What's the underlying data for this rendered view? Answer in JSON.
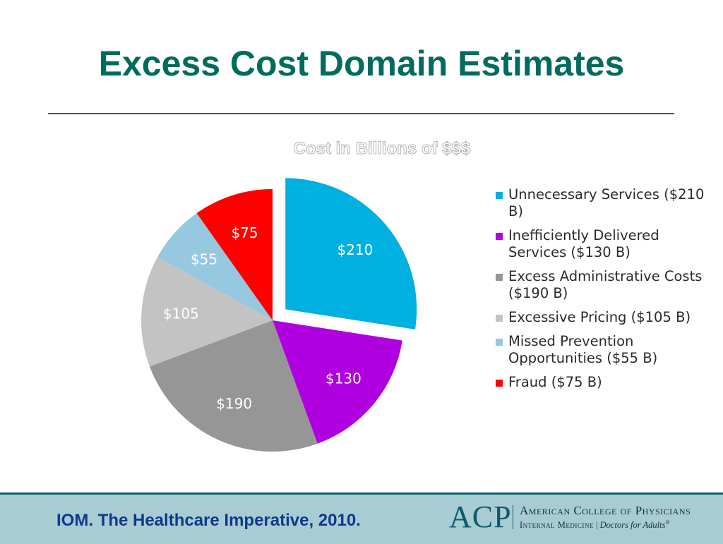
{
  "slide": {
    "title": "Excess Cost Domain Estimates"
  },
  "chart_data": {
    "type": "pie",
    "title": "Cost in Billions of $$$",
    "categories": [
      "Unnecessary Services ($210 B)",
      "Inefficiently Delivered Services ($130 B)",
      "Excess Administrative Costs ($190 B)",
      "Excessive Pricing ($105 B)",
      "Missed Prevention Opportunities ($55 B)",
      "Fraud ($75 B)"
    ],
    "values": [
      210,
      130,
      190,
      105,
      55,
      75
    ],
    "data_labels": [
      "$210",
      "$130",
      "$190",
      "$105",
      "$55",
      "$75"
    ],
    "colors": [
      "#00b0e0",
      "#b000e0",
      "#969696",
      "#c3c3c3",
      "#96c8e0",
      "#ff0000"
    ],
    "exploded_slice": 0,
    "legend_position": "right"
  },
  "footer": {
    "citation": "IOM. The Healthcare Imperative, 2010.",
    "logo": {
      "letters": "ACP",
      "name": "American College of Physicians",
      "tagline_org": "Internal Medicine",
      "tagline_separator": "|",
      "tagline_motto": "Doctors for Adults",
      "tagline_mark": "®"
    }
  }
}
